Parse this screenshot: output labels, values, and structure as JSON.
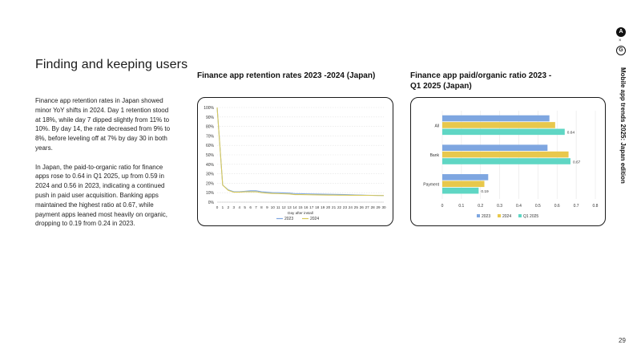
{
  "page": {
    "title": "Finding and keeping users",
    "paragraphs": [
      "Finance app retention rates in Japan showed minor YoY shifts in 2024. Day 1 retention stood at 18%, while day 7 dipped slightly from 11% to 10%. By day 14, the rate decreased from 9% to 8%, before leveling off at 7% by day 30 in both years.",
      "In Japan, the paid-to-organic ratio for finance apps rose to 0.64 in Q1 2025, up from 0.59 in 2024 and 0.56 in 2023, indicating a continued push in paid user acquisition. Banking apps maintained the highest ratio at 0.67, while payment apps leaned most heavily on organic, dropping to 0.19 from 0.24 in 2023."
    ],
    "side_title": "Mobile app trends 2025: Japan edition",
    "brand": {
      "logo_a": "A",
      "separator": "×",
      "logo_g": "G"
    },
    "page_number": "29"
  },
  "chart_data": [
    {
      "type": "line",
      "title": "Finance app retention rates 2023 -2024 (Japan)",
      "xlabel": "Day after install",
      "ylabel": "",
      "x": [
        0,
        1,
        2,
        3,
        4,
        5,
        6,
        7,
        8,
        9,
        10,
        11,
        12,
        13,
        14,
        15,
        16,
        17,
        18,
        19,
        20,
        21,
        22,
        23,
        24,
        25,
        26,
        27,
        28,
        29,
        30
      ],
      "yticks": [
        "0%",
        "10%",
        "20%",
        "30%",
        "40%",
        "50%",
        "60%",
        "70%",
        "80%",
        "90%",
        "100%"
      ],
      "ylim": [
        0,
        100
      ],
      "grid": true,
      "legend": "bottom",
      "series": [
        {
          "name": "2023",
          "color": "#7ea6e0",
          "values": [
            100,
            18,
            13,
            11,
            11,
            11.5,
            12,
            12,
            11,
            10.5,
            10,
            10,
            9.8,
            9.6,
            9,
            9,
            8.8,
            8.6,
            8.5,
            8.4,
            8.3,
            8.2,
            8.1,
            8,
            7.8,
            7.6,
            7.5,
            7.3,
            7.2,
            7.1,
            7
          ]
        },
        {
          "name": "2024",
          "color": "#d8c95a",
          "values": [
            100,
            18,
            12.5,
            10.5,
            10.5,
            11,
            11,
            11,
            10,
            9.5,
            9.2,
            9,
            8.8,
            8.6,
            8,
            8,
            7.9,
            7.8,
            7.7,
            7.6,
            7.5,
            7.5,
            7.4,
            7.4,
            7.3,
            7.3,
            7.2,
            7.2,
            7.1,
            7,
            7
          ]
        }
      ]
    },
    {
      "type": "bar",
      "orientation": "horizontal",
      "title": "Finance app paid/organic ratio  2023 - Q1 2025 (Japan)",
      "categories": [
        "All",
        "Bank",
        "Payment"
      ],
      "xlim": [
        0,
        0.8
      ],
      "xticks": [
        "0",
        "0.1",
        "0.2",
        "0.3",
        "0.4",
        "0.5",
        "0.6",
        "0.7",
        "0.8"
      ],
      "grid": true,
      "legend": "bottom",
      "series": [
        {
          "name": "2023",
          "color": "#7ea6e0",
          "values": [
            0.56,
            0.55,
            0.24
          ]
        },
        {
          "name": "2024",
          "color": "#e8c84c",
          "values": [
            0.59,
            0.66,
            0.22
          ]
        },
        {
          "name": "Q1 2025",
          "color": "#5fd6c4",
          "values": [
            0.64,
            0.67,
            0.19
          ]
        }
      ],
      "data_labels": [
        "0.64",
        "0.67",
        "0.19"
      ]
    }
  ]
}
